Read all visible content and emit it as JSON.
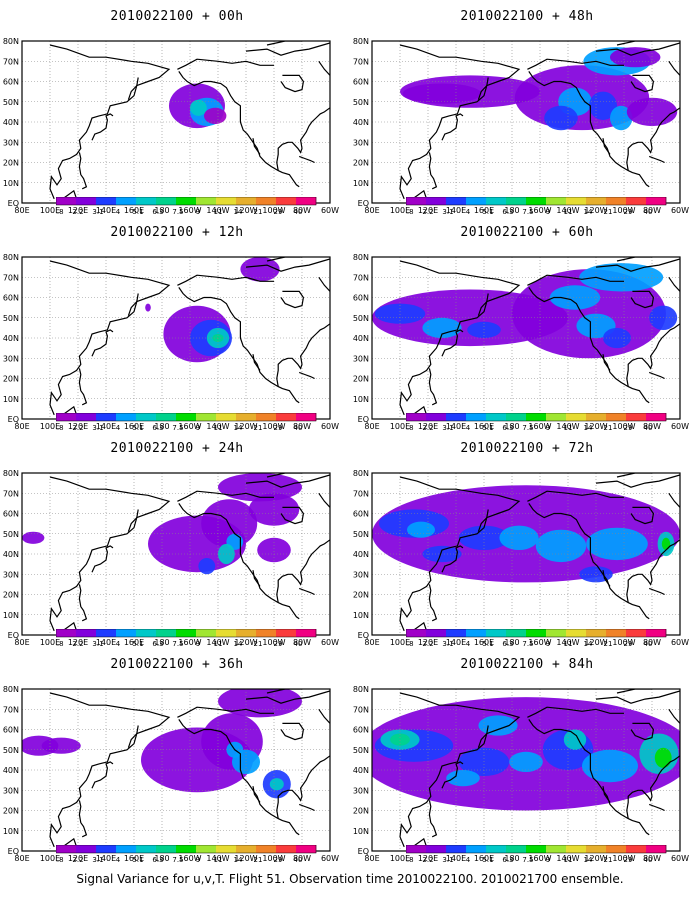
{
  "panels": [
    {
      "title": "2010022100 + 00h",
      "field": "f00"
    },
    {
      "title": "2010022100 + 48h",
      "field": "f48"
    },
    {
      "title": "2010022100 + 12h",
      "field": "f12"
    },
    {
      "title": "2010022100 + 60h",
      "field": "f60"
    },
    {
      "title": "2010022100 + 24h",
      "field": "f24"
    },
    {
      "title": "2010022100 + 72h",
      "field": "f72"
    },
    {
      "title": "2010022100 + 36h",
      "field": "f36"
    },
    {
      "title": "2010022100 + 84h",
      "field": "f84"
    }
  ],
  "lon_labels": [
    "80E",
    "100E",
    "120E",
    "140E",
    "160E",
    "180",
    "160W",
    "140W",
    "120W",
    "100W",
    "80W",
    "60W"
  ],
  "lat_labels": [
    "80N",
    "70N",
    "60N",
    "50N",
    "40N",
    "30N",
    "20N",
    "10N",
    "EQ"
  ],
  "colorbar": {
    "labels": [
      "1.8",
      "2.2",
      "3.1",
      "4",
      "5.1",
      "6.3",
      "7.5",
      "9",
      "11",
      "14",
      "21",
      "29",
      "40"
    ],
    "colors": [
      "#a000c8",
      "#8200dc",
      "#1e3cff",
      "#00a0ff",
      "#00c8c8",
      "#00d28c",
      "#00dc00",
      "#a0e632",
      "#e6dc32",
      "#e6af2d",
      "#f08228",
      "#fa3c3c",
      "#f00082"
    ]
  },
  "caption": "Signal Variance for u,v,T. Flight 51. Observation time 2010022100. 2010021700 ensemble."
}
